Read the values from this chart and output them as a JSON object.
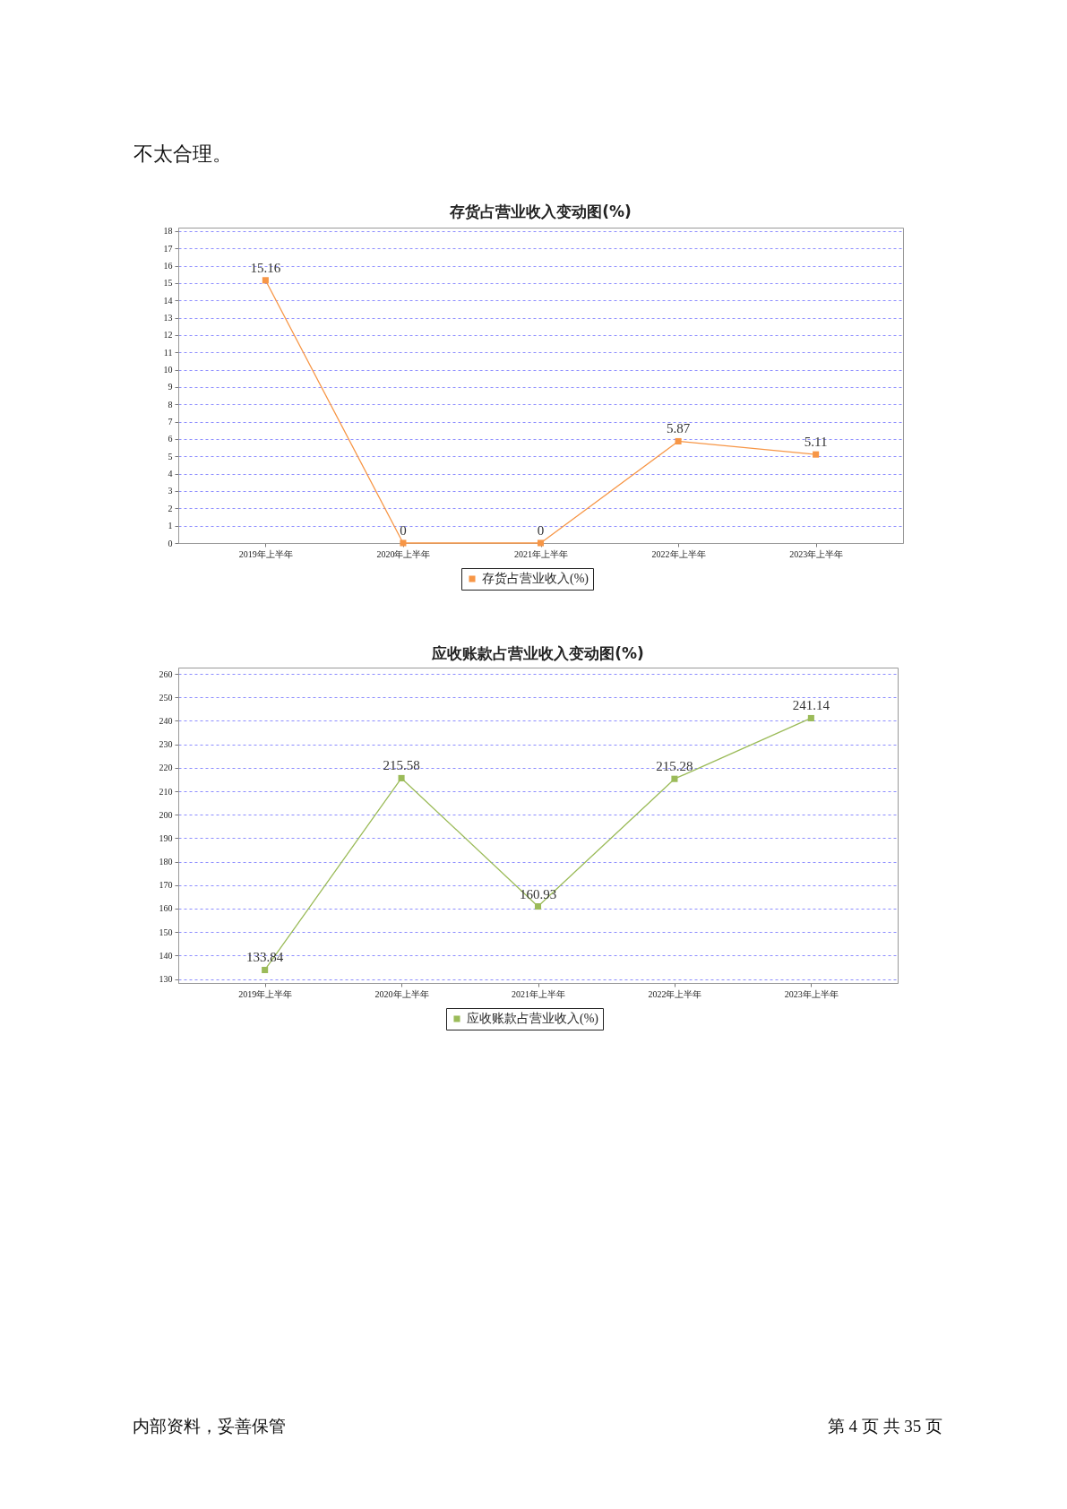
{
  "chart_data": [
    {
      "type": "line",
      "title": "存货占营业收入变动图(%)",
      "categories": [
        "2019年上半年",
        "2020年上半年",
        "2021年上半年",
        "2022年上半年",
        "2023年上半年"
      ],
      "series": [
        {
          "name": "存货占营业收入(%)",
          "color": "#f79646",
          "values": [
            15.16,
            0,
            0,
            5.87,
            5.11
          ]
        }
      ],
      "ylim": [
        0,
        18.2
      ],
      "yticks": [
        0,
        1,
        2,
        3,
        4,
        5,
        6,
        7,
        8,
        9,
        10,
        11,
        12,
        13,
        14,
        15,
        16,
        17,
        18
      ],
      "grid": "y",
      "legend": "bottom",
      "marker": "square",
      "line_style": "solid",
      "data_labels": true,
      "annotations": [
        "不太合理。"
      ]
    },
    {
      "type": "line",
      "title": "应收账款占营业收入变动图(%)",
      "categories": [
        "2019年上半年",
        "2020年上半年",
        "2021年上半年",
        "2022年上半年",
        "2023年上半年"
      ],
      "series": [
        {
          "name": "应收账款占营业收入(%)",
          "color": "#9bbb59",
          "values": [
            133.84,
            215.58,
            160.93,
            215.28,
            241.14
          ]
        }
      ],
      "ylim": [
        128.3,
        262.7
      ],
      "yticks": [
        130,
        140,
        150,
        160,
        170,
        180,
        190,
        200,
        210,
        220,
        230,
        240,
        250,
        260
      ],
      "grid": "y",
      "legend": "bottom",
      "marker": "square",
      "line_style": "solid",
      "data_labels": true,
      "annotations": [
        "内部资料，妥善保管",
        "第 4 页 共 35 页"
      ]
    }
  ]
}
